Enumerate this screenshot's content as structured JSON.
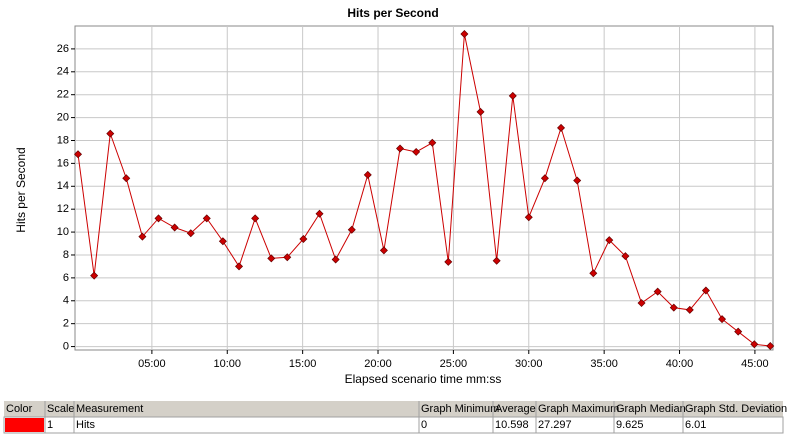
{
  "chart_data": {
    "type": "line",
    "title": "Hits per Second",
    "x_label": "Elapsed scenario time mm:ss",
    "y_label": "Hits per Second",
    "x": [
      0.1,
      1.17,
      2.24,
      3.3,
      4.37,
      5.44,
      6.51,
      7.58,
      8.64,
      9.71,
      10.78,
      11.85,
      12.92,
      13.98,
      15.05,
      16.12,
      17.19,
      18.26,
      19.32,
      20.39,
      21.46,
      22.53,
      23.6,
      24.66,
      25.73,
      26.8,
      27.87,
      28.94,
      30.0,
      31.07,
      32.14,
      33.21,
      34.28,
      35.34,
      36.41,
      37.48,
      38.55,
      39.62,
      40.68,
      41.75,
      42.82,
      43.89,
      44.96,
      46.02
    ],
    "series": [
      {
        "name": "Hits",
        "color": "#cc0000",
        "values": [
          16.8,
          6.2,
          18.6,
          14.7,
          9.6,
          11.2,
          10.4,
          9.9,
          11.2,
          9.2,
          7.0,
          11.2,
          7.7,
          7.8,
          9.4,
          11.6,
          7.6,
          10.2,
          15.0,
          8.4,
          17.3,
          17.0,
          17.8,
          7.4,
          27.3,
          20.5,
          7.5,
          21.9,
          11.3,
          14.7,
          19.1,
          14.5,
          6.4,
          9.3,
          7.9,
          3.8,
          4.8,
          3.4,
          3.2,
          4.9,
          2.4,
          1.3,
          0.2,
          0.05
        ]
      }
    ],
    "xlim": [
      -0.1,
      46.2
    ],
    "xticks": [
      {
        "value": 5,
        "label": "05:00"
      },
      {
        "value": 10,
        "label": "10:00"
      },
      {
        "value": 15,
        "label": "15:00"
      },
      {
        "value": 20,
        "label": "20:00"
      },
      {
        "value": 25,
        "label": "25:00"
      },
      {
        "value": 30,
        "label": "30:00"
      },
      {
        "value": 35,
        "label": "35:00"
      },
      {
        "value": 40,
        "label": "40:00"
      },
      {
        "value": 45,
        "label": "45:00"
      }
    ],
    "ylim": [
      -0.3,
      28
    ],
    "yticks": [
      0,
      2,
      4,
      6,
      8,
      10,
      12,
      14,
      16,
      18,
      20,
      22,
      24,
      26
    ],
    "grid": true
  },
  "table": {
    "columns": [
      "Color",
      "Scale",
      "Measurement",
      "Graph Minimum",
      "Average",
      "Graph Maximum",
      "Graph Median",
      "Graph Std. Deviation"
    ],
    "rows": [
      {
        "color": "#ff0000",
        "cells": [
          "1",
          "Hits",
          "0",
          "10.598",
          "27.297",
          "9.625",
          "6.01"
        ]
      }
    ]
  }
}
